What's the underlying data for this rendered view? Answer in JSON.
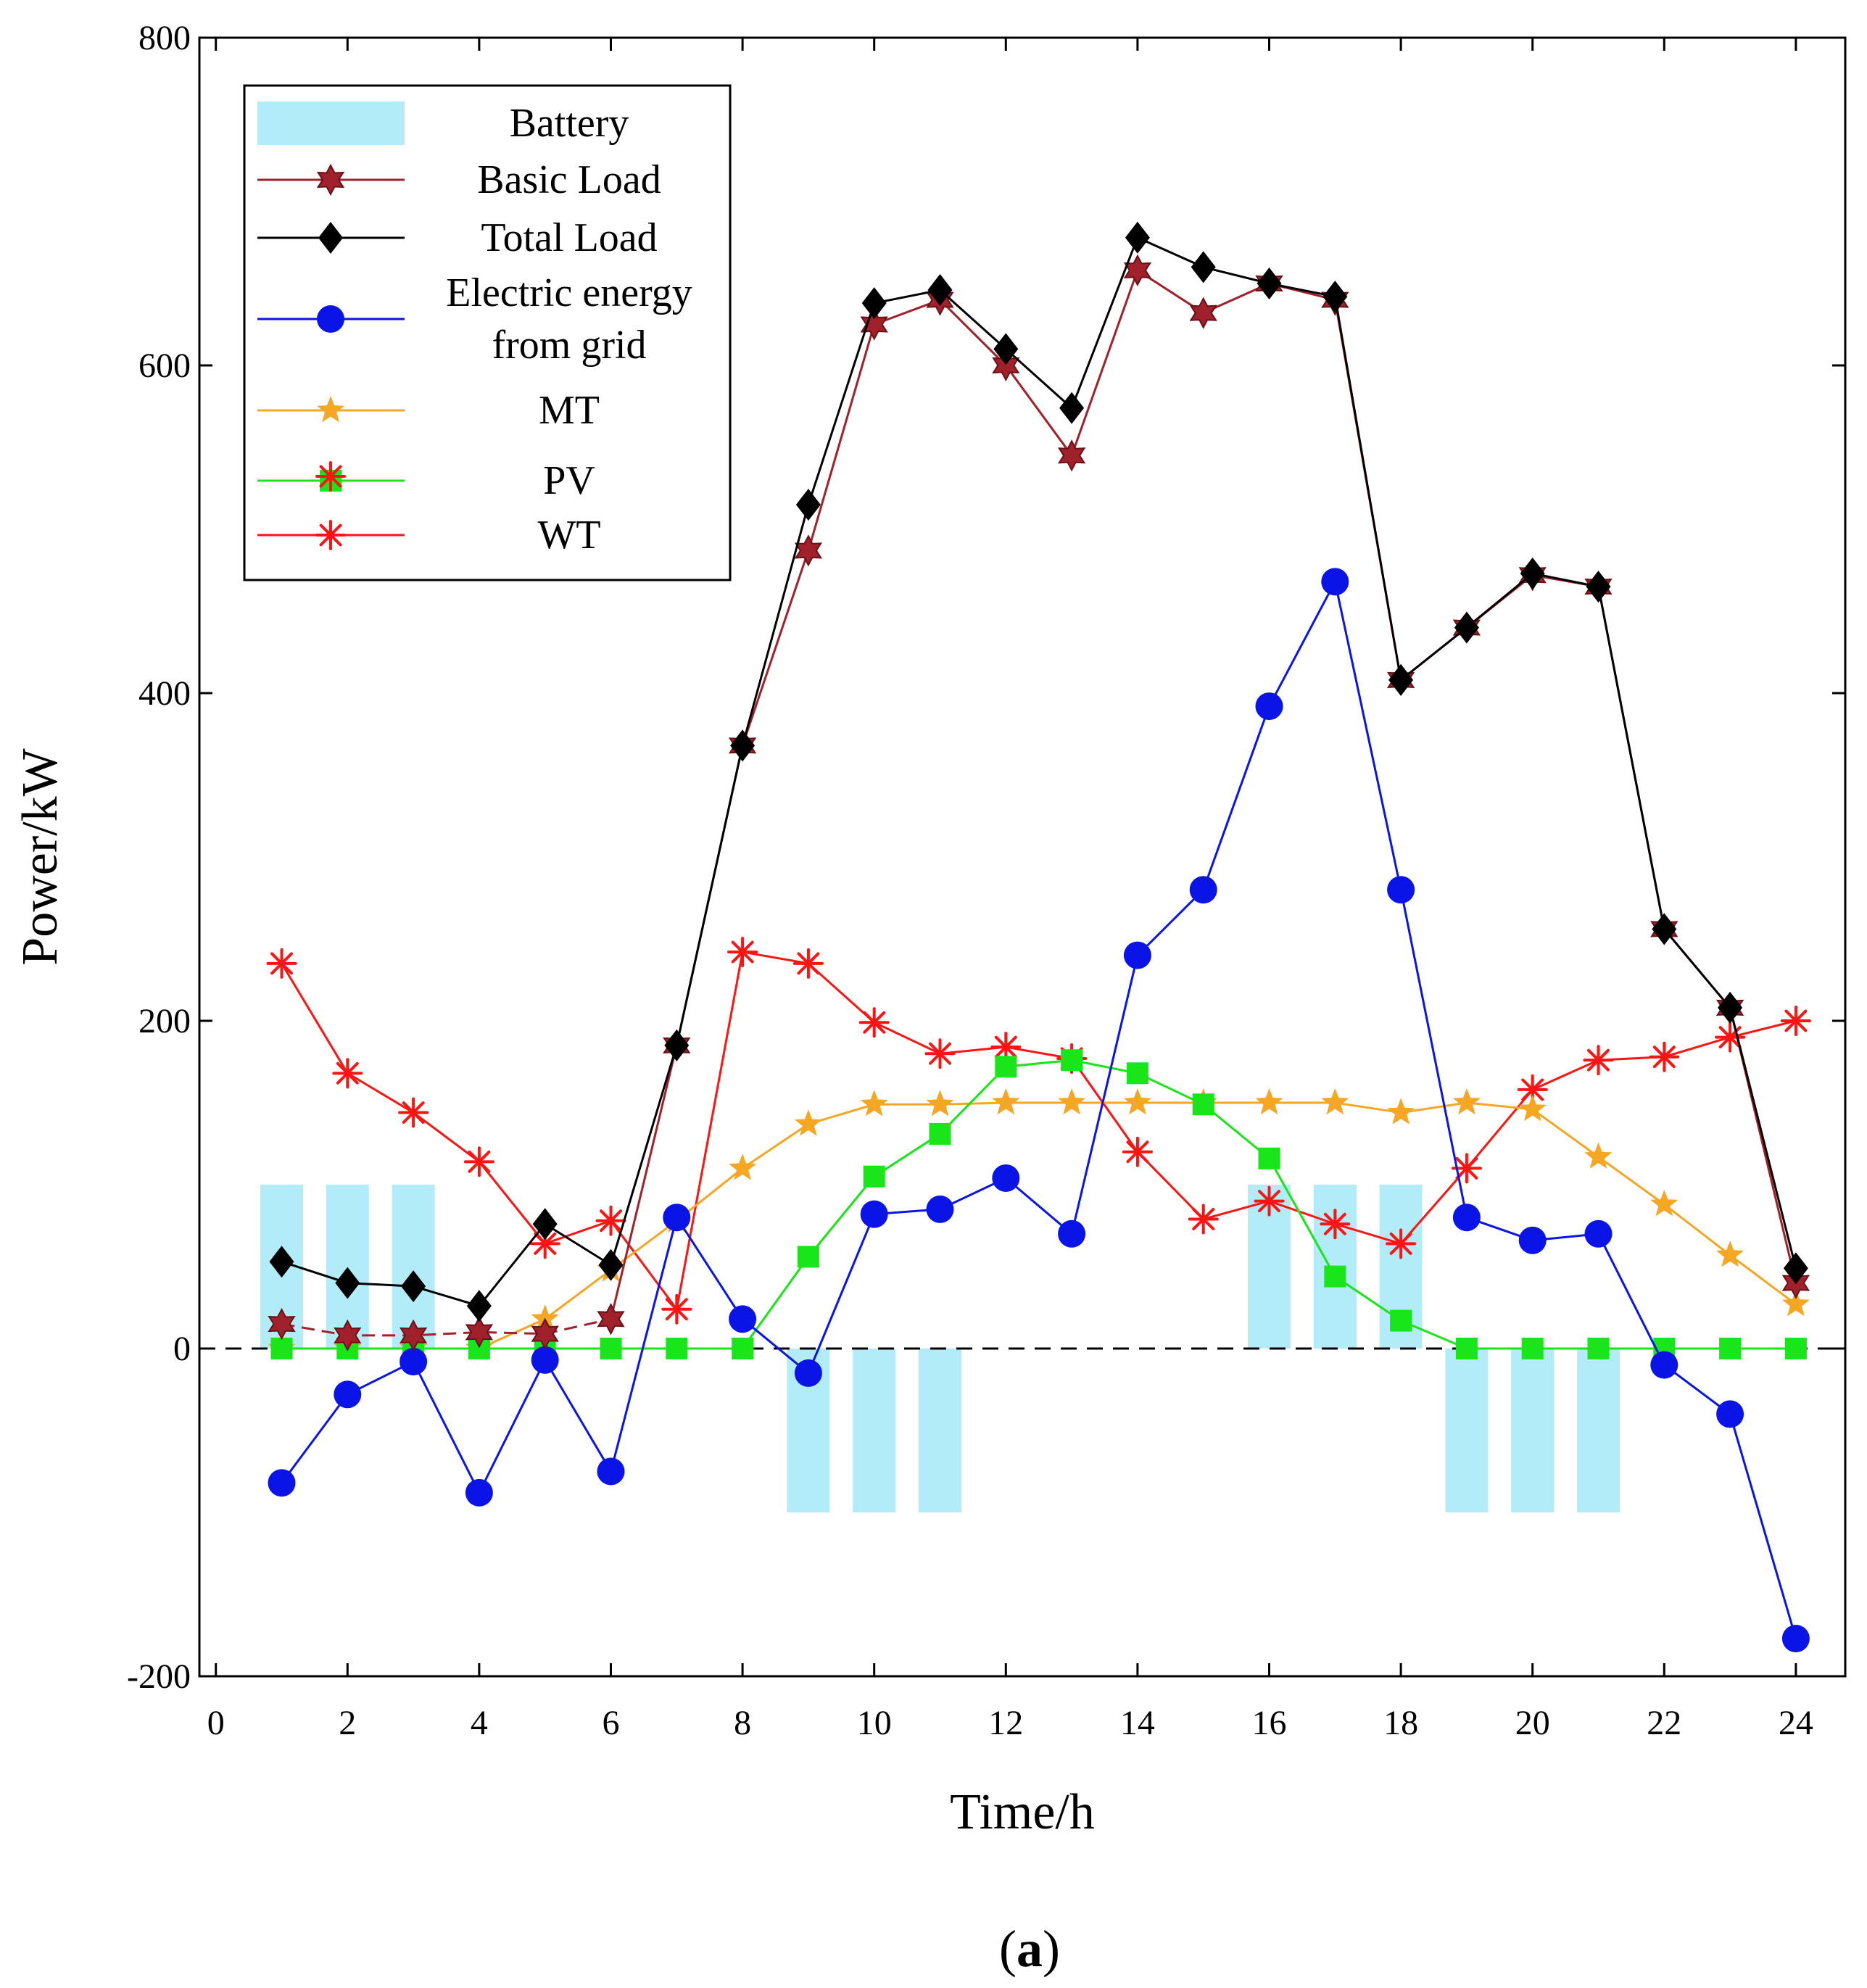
{
  "chart_data": {
    "type": "line",
    "title": "",
    "caption": "(a)",
    "caption_parts": [
      "(",
      "a",
      ")"
    ],
    "xlabel": "Time/h",
    "ylabel": "Power/kW",
    "xlim": [
      -0.25,
      24.75
    ],
    "ylim": [
      -200,
      800
    ],
    "xticks": [
      0,
      2,
      4,
      6,
      8,
      10,
      12,
      14,
      16,
      18,
      20,
      22,
      24
    ],
    "yticks": [
      -200,
      0,
      200,
      400,
      600,
      800
    ],
    "x": [
      1,
      2,
      3,
      4,
      5,
      6,
      7,
      8,
      9,
      10,
      11,
      12,
      13,
      14,
      15,
      16,
      17,
      18,
      19,
      20,
      21,
      22,
      23,
      24
    ],
    "legend_position": "top-left",
    "legend": [
      {
        "name": "Battery",
        "lines": [
          "Battery"
        ],
        "color": "#b3ecf9",
        "kind": "bar"
      },
      {
        "name": "Basic Load",
        "lines": [
          "Basic Load"
        ],
        "color": "#a0212b",
        "kind": "hexagram"
      },
      {
        "name": "Total Load",
        "lines": [
          "Total Load"
        ],
        "color": "#000000",
        "kind": "diamond"
      },
      {
        "name": "Electric energy from grid",
        "lines": [
          "Electric energy",
          "from grid"
        ],
        "color": "#0a14e6",
        "kind": "circle"
      },
      {
        "name": "MT",
        "lines": [
          "MT"
        ],
        "color": "#f5a623",
        "kind": "star"
      },
      {
        "name": "PV",
        "lines": [
          "PV"
        ],
        "color": "#19e619",
        "kind": "square"
      },
      {
        "name": "WT",
        "lines": [
          "WT"
        ],
        "color": "#ff1414",
        "kind": "asterisk"
      }
    ],
    "battery": {
      "name": "Battery",
      "color": "#b3ecf9",
      "values": [
        100,
        100,
        100,
        0,
        0,
        0,
        0,
        0,
        -100,
        -100,
        -100,
        0,
        0,
        0,
        0,
        100,
        100,
        100,
        -100,
        -100,
        -100,
        0,
        0,
        0
      ]
    },
    "series": [
      {
        "name": "Basic Load",
        "color": "#a0212b",
        "marker": "hexagram",
        "line_style": "dashed-start",
        "values": [
          15,
          8,
          8,
          10,
          9,
          18,
          185,
          368,
          487,
          625,
          640,
          600,
          545,
          658,
          632,
          650,
          640,
          408,
          440,
          472,
          465,
          256,
          208,
          40
        ]
      },
      {
        "name": "Total Load",
        "color": "#000000",
        "marker": "diamond",
        "values": [
          53,
          40,
          38,
          26,
          76,
          51,
          185,
          368,
          515,
          638,
          646,
          610,
          574,
          678,
          660,
          650,
          642,
          408,
          440,
          473,
          465,
          256,
          208,
          49
        ]
      },
      {
        "name": "Electric energy from grid",
        "color": "#0a14e6",
        "marker": "circle",
        "values": [
          -82,
          -28,
          -8,
          -88,
          -7,
          -75,
          80,
          18,
          -15,
          82,
          85,
          104,
          70,
          240,
          280,
          392,
          468,
          280,
          80,
          66,
          70,
          -10,
          -40,
          -177
        ]
      },
      {
        "name": "MT",
        "color": "#f5a623",
        "marker": "star",
        "values": [
          0,
          0,
          0,
          0,
          18,
          48,
          78,
          110,
          137,
          149,
          149,
          150,
          150,
          150,
          150,
          150,
          150,
          144,
          150,
          146,
          117,
          88,
          57,
          27
        ]
      },
      {
        "name": "PV",
        "color": "#19e619",
        "marker": "square",
        "values": [
          0,
          0,
          0,
          0,
          0,
          0,
          0,
          0,
          56,
          105,
          131,
          172,
          176,
          168,
          149,
          116,
          44,
          17,
          0,
          0,
          0,
          0,
          0,
          0
        ]
      },
      {
        "name": "WT",
        "color": "#ff1414",
        "marker": "asterisk",
        "values": [
          235,
          168,
          144,
          114,
          64,
          78,
          24,
          242,
          235,
          199,
          180,
          184,
          177,
          120,
          79,
          90,
          76,
          64,
          110,
          158,
          176,
          178,
          190,
          200
        ]
      }
    ]
  }
}
